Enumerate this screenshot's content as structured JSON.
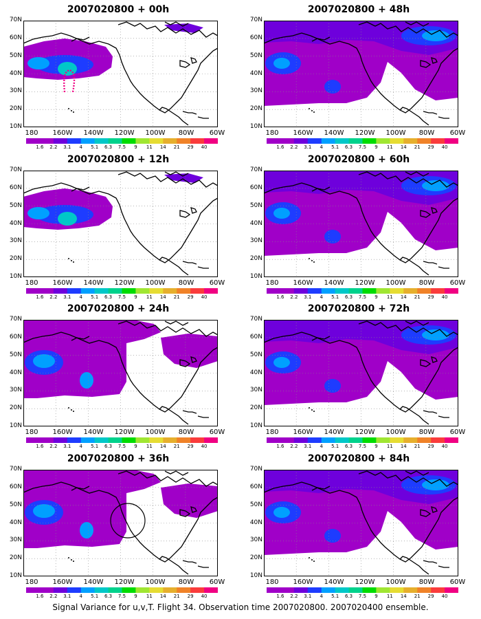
{
  "caption": "Signal Variance for u,v,T. Flight 34. Observation time 2007020800. 2007020400 ensemble.",
  "lat_labels": [
    "70N",
    "60N",
    "50N",
    "40N",
    "30N",
    "20N",
    "10N"
  ],
  "lon_labels": [
    "180",
    "160W",
    "140W",
    "120W",
    "100W",
    "80W",
    "60W"
  ],
  "colorbar": {
    "levels": [
      "1.6",
      "2.2",
      "3.1",
      "4",
      "5.1",
      "6.3",
      "7.5",
      "9",
      "11",
      "14",
      "21",
      "29",
      "40"
    ],
    "colors": [
      "#a000c8",
      "#6e00dc",
      "#1e3cff",
      "#00a0ff",
      "#00c8c8",
      "#00d28c",
      "#00dc00",
      "#a0e632",
      "#e6dc32",
      "#e6af2d",
      "#f08228",
      "#fa3c3c",
      "#f00082"
    ]
  },
  "panels": [
    {
      "title": "2007020800 + 00h",
      "coverage": "low"
    },
    {
      "title": "2007020800 + 48h",
      "coverage": "high"
    },
    {
      "title": "2007020800 + 12h",
      "coverage": "low"
    },
    {
      "title": "2007020800 + 60h",
      "coverage": "high"
    },
    {
      "title": "2007020800 + 24h",
      "coverage": "mid"
    },
    {
      "title": "2007020800 + 72h",
      "coverage": "high"
    },
    {
      "title": "2007020800 + 36h",
      "coverage": "mid"
    },
    {
      "title": "2007020800 + 84h",
      "coverage": "high"
    }
  ]
}
